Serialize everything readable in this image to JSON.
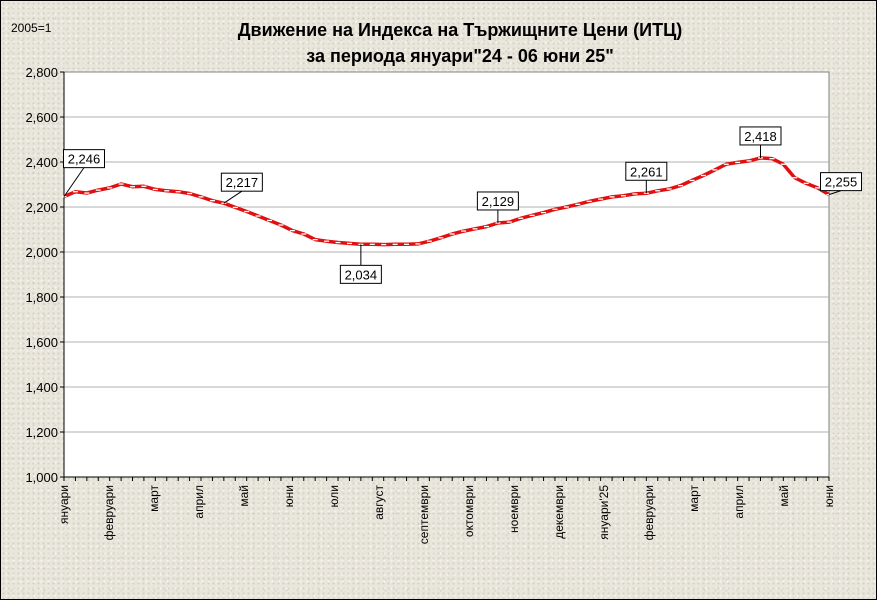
{
  "chart_data": {
    "type": "line",
    "title_line1": "Движение на Индекса на Тържищните Цени (ИТЦ)",
    "title_line2": "за периода януари\"24 - 06 юни 25\"",
    "units_label": "2005=1",
    "ylim": [
      1.0,
      2.8
    ],
    "y_ticks": [
      "1,000",
      "1,200",
      "1,400",
      "1,600",
      "1,800",
      "2,000",
      "2,200",
      "2,400",
      "2,600",
      "2,800"
    ],
    "y_tick_values": [
      1.0,
      1.2,
      1.4,
      1.6,
      1.8,
      2.0,
      2.2,
      2.4,
      2.6,
      2.8
    ],
    "x_labels": [
      "януари",
      "февруари",
      "март",
      "април",
      "май",
      "юни",
      "юли",
      "август",
      "септември",
      "октомври",
      "ноември",
      "декември",
      "януари'25",
      "февруари",
      "март",
      "април",
      "май",
      "юни"
    ],
    "grid": "horizontal",
    "line_color": "#e01010",
    "series": [
      {
        "values": [
          2.246,
          2.268,
          2.262,
          2.275,
          2.285,
          2.302,
          2.29,
          2.292,
          2.278,
          2.272,
          2.268,
          2.26,
          2.245,
          2.228,
          2.217,
          2.198,
          2.18,
          2.16,
          2.14,
          2.12,
          2.095,
          2.08,
          2.055,
          2.048,
          2.042,
          2.038,
          2.034,
          2.034,
          2.033,
          2.034,
          2.034,
          2.036,
          2.048,
          2.063,
          2.08,
          2.093,
          2.103,
          2.113,
          2.129,
          2.133,
          2.15,
          2.163,
          2.175,
          2.19,
          2.2,
          2.212,
          2.225,
          2.235,
          2.245,
          2.25,
          2.258,
          2.261,
          2.272,
          2.28,
          2.295,
          2.318,
          2.34,
          2.365,
          2.39,
          2.398,
          2.405,
          2.418,
          2.415,
          2.39,
          2.33,
          2.305,
          2.285,
          2.255
        ]
      }
    ],
    "data_labels": [
      {
        "index": 0,
        "text": "2,246"
      },
      {
        "index": 14,
        "text": "2,217"
      },
      {
        "index": 26,
        "text": "2,034"
      },
      {
        "index": 38,
        "text": "2,129"
      },
      {
        "index": 51,
        "text": "2,261"
      },
      {
        "index": 61,
        "text": "2,418"
      },
      {
        "index": 67,
        "text": "2,255"
      }
    ]
  }
}
